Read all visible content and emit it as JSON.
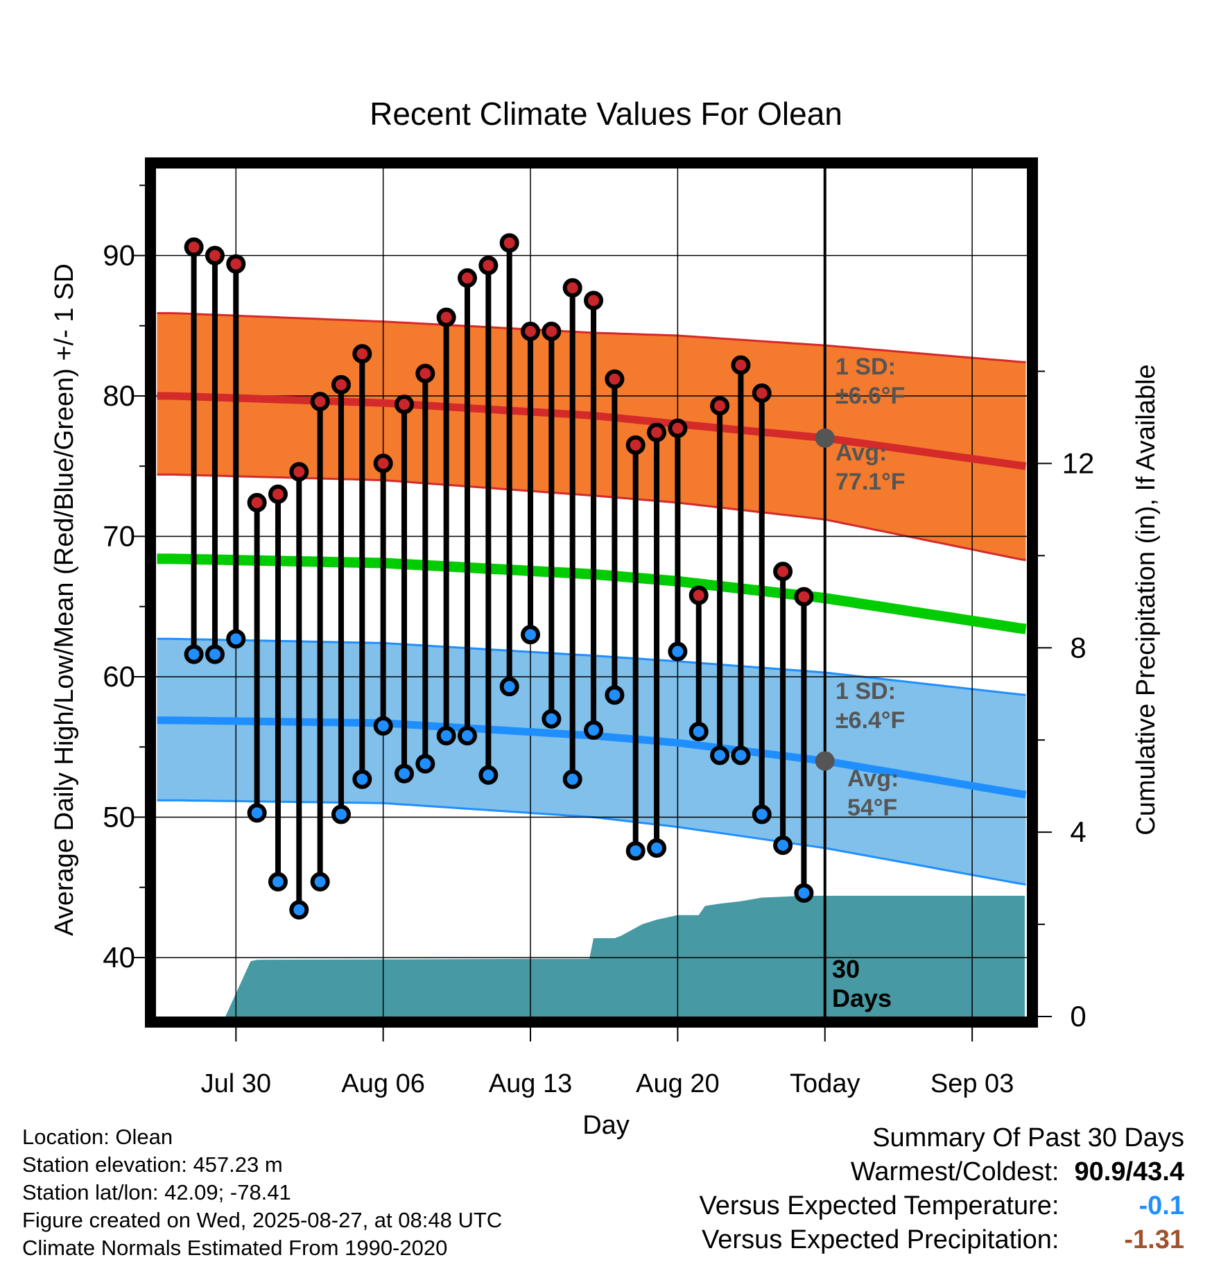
{
  "chart_data": {
    "type": "line",
    "title": "Recent Climate Values For Olean",
    "xlabel": "Day",
    "ylabel_left": "Average Daily High/Low/Mean (Red/Blue/Green) +/- 1 SD",
    "ylabel_right": "Cumulative Precipitation (in), If Available",
    "x_ticks": [
      "Jul 30",
      "Aug 06",
      "Aug 13",
      "Aug 20",
      "Today",
      "Sep 03"
    ],
    "x_tick_positions": [
      3,
      10,
      17,
      24,
      31,
      38
    ],
    "xlim": [
      -0.8,
      40.6
    ],
    "ylim_left": [
      35.8,
      96.2
    ],
    "yticks_left": [
      40,
      50,
      60,
      70,
      80,
      90
    ],
    "ylim_right": [
      0,
      18.4
    ],
    "yticks_right": [
      0,
      4,
      8,
      12
    ],
    "today_index": 31,
    "highs": [
      90.6,
      90.0,
      89.4,
      72.4,
      73.0,
      74.6,
      79.6,
      80.8,
      83.0,
      75.2,
      79.4,
      81.6,
      85.6,
      88.4,
      89.3,
      90.9,
      84.6,
      84.6,
      87.7,
      86.8,
      81.2,
      76.5,
      77.4,
      77.7,
      65.8,
      79.3,
      82.2,
      80.2,
      67.5,
      65.7
    ],
    "lows": [
      61.6,
      61.6,
      62.7,
      50.3,
      45.4,
      43.4,
      45.4,
      50.2,
      52.7,
      56.5,
      53.1,
      53.8,
      55.8,
      55.8,
      53.0,
      59.3,
      63.0,
      57.0,
      52.7,
      56.2,
      58.7,
      47.6,
      47.8,
      61.8,
      56.1,
      54.4,
      54.4,
      50.2,
      48.0,
      44.6
    ],
    "normal_high": {
      "x": [
        0,
        10,
        20,
        24,
        31,
        40.5
      ],
      "values": [
        80.0,
        79.5,
        78.6,
        78.0,
        77.0,
        75.0
      ]
    },
    "normal_high_sd": {
      "upper": [
        85.9,
        85.3,
        84.5,
        84.3,
        83.6,
        82.4
      ],
      "lower": [
        74.4,
        74.0,
        72.9,
        72.4,
        71.2,
        68.3
      ]
    },
    "normal_low": {
      "x": [
        0,
        10,
        20,
        24,
        31,
        40.5
      ],
      "values": [
        56.9,
        56.7,
        55.8,
        55.3,
        54.0,
        51.6
      ]
    },
    "normal_low_sd": {
      "upper": [
        62.7,
        62.4,
        61.5,
        61.1,
        60.3,
        58.7
      ],
      "lower": [
        51.2,
        51.0,
        50.0,
        49.3,
        47.8,
        45.2
      ]
    },
    "normal_mean": {
      "x": [
        0,
        10,
        20,
        24,
        31,
        40.5
      ],
      "values": [
        68.4,
        68.1,
        67.3,
        66.8,
        65.6,
        63.4
      ]
    },
    "precip_cumulative": {
      "x": [
        2.5,
        3.1,
        3.7,
        4,
        17,
        19.8,
        20,
        21,
        21.3,
        22.3,
        23,
        24,
        25,
        25.3,
        26,
        27,
        28,
        29,
        30,
        40.5
      ],
      "values": [
        0.0,
        0.6,
        1.2,
        1.23,
        1.25,
        1.25,
        1.7,
        1.7,
        1.75,
        2.0,
        2.1,
        2.2,
        2.2,
        2.4,
        2.45,
        2.5,
        2.58,
        2.6,
        2.62,
        2.62
      ]
    },
    "annotations": {
      "high_sd_label": [
        "1 SD:",
        "±6.6°F"
      ],
      "high_avg_label": [
        "Avg:",
        "77.1°F"
      ],
      "low_sd_label": [
        "1 SD:",
        "±6.4°F"
      ],
      "low_avg_label": [
        "Avg:",
        "54°F"
      ],
      "days_label": [
        "30",
        "Days"
      ]
    },
    "colors": {
      "high_marker": "#c8262a",
      "low_marker": "#1f8fff",
      "high_band": "#f47a2e",
      "high_line": "#d42a2a",
      "low_band": "#80c0ea",
      "low_line": "#1f8fff",
      "mean_line": "#00cc00",
      "precip": "#479aa3",
      "annotation": "#555555"
    }
  },
  "footer": {
    "location": "Location: Olean",
    "elevation": "Station elevation: 457.23 m",
    "latlon": "Station lat/lon: 42.09; -78.41",
    "created": "Figure created on Wed, 2025-08-27, at 08:48 UTC",
    "normals": "Climate Normals Estimated From 1990-2020"
  },
  "summary": {
    "title": "Summary Of Past 30 Days",
    "warmest_label": "Warmest/Coldest:",
    "warmest_value": "90.9/43.4",
    "temp_label": "Versus Expected Temperature:",
    "temp_value": "-0.1",
    "precip_label": "Versus Expected Precipitation:",
    "precip_value": "-1.31",
    "temp_value_color": "#1f8fff",
    "precip_value_color": "#a0522d"
  }
}
